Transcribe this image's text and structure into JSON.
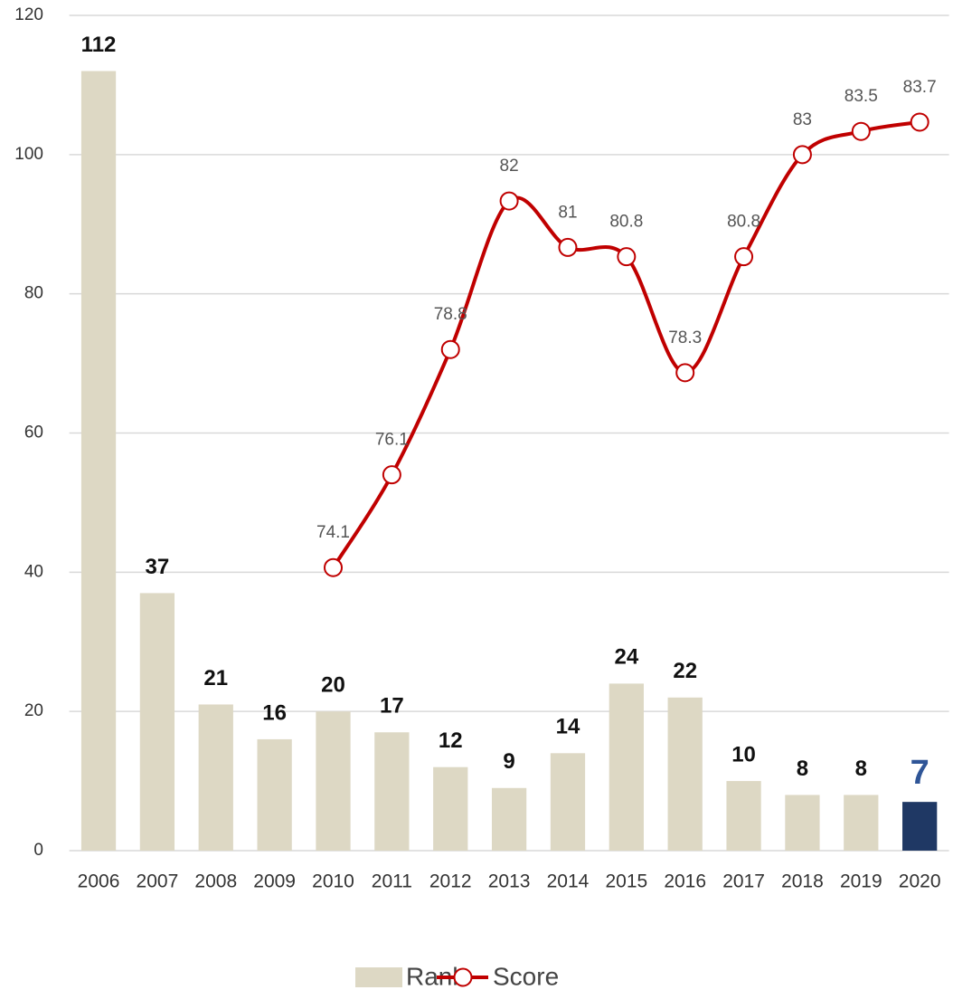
{
  "chart_data": {
    "type": "bar",
    "categories": [
      "2006",
      "2007",
      "2008",
      "2009",
      "2010",
      "2011",
      "2012",
      "2013",
      "2014",
      "2015",
      "2016",
      "2017",
      "2018",
      "2019",
      "2020"
    ],
    "series": [
      {
        "name": "Rank",
        "type": "bar",
        "color": "#ddd8c4",
        "colors": [
          "#ddd8c4",
          "#ddd8c4",
          "#ddd8c4",
          "#ddd8c4",
          "#ddd8c4",
          "#ddd8c4",
          "#ddd8c4",
          "#ddd8c4",
          "#ddd8c4",
          "#ddd8c4",
          "#ddd8c4",
          "#ddd8c4",
          "#ddd8c4",
          "#ddd8c4",
          "#1f3864"
        ],
        "values": [
          112,
          37,
          21,
          16,
          20,
          17,
          12,
          9,
          14,
          24,
          22,
          10,
          8,
          8,
          7
        ]
      },
      {
        "name": "Score",
        "type": "line",
        "axis": "y2",
        "color": "#c00000",
        "smooth": true,
        "values": [
          null,
          null,
          null,
          null,
          74.1,
          76.1,
          78.8,
          82,
          81,
          80.8,
          78.3,
          80.8,
          83,
          83.5,
          83.7
        ]
      }
    ],
    "ylim": [
      0,
      120
    ],
    "yticks": [
      0,
      20,
      40,
      60,
      80,
      100,
      120
    ],
    "y2lim": [
      68,
      86
    ],
    "grid": true,
    "legend": "bottom"
  }
}
